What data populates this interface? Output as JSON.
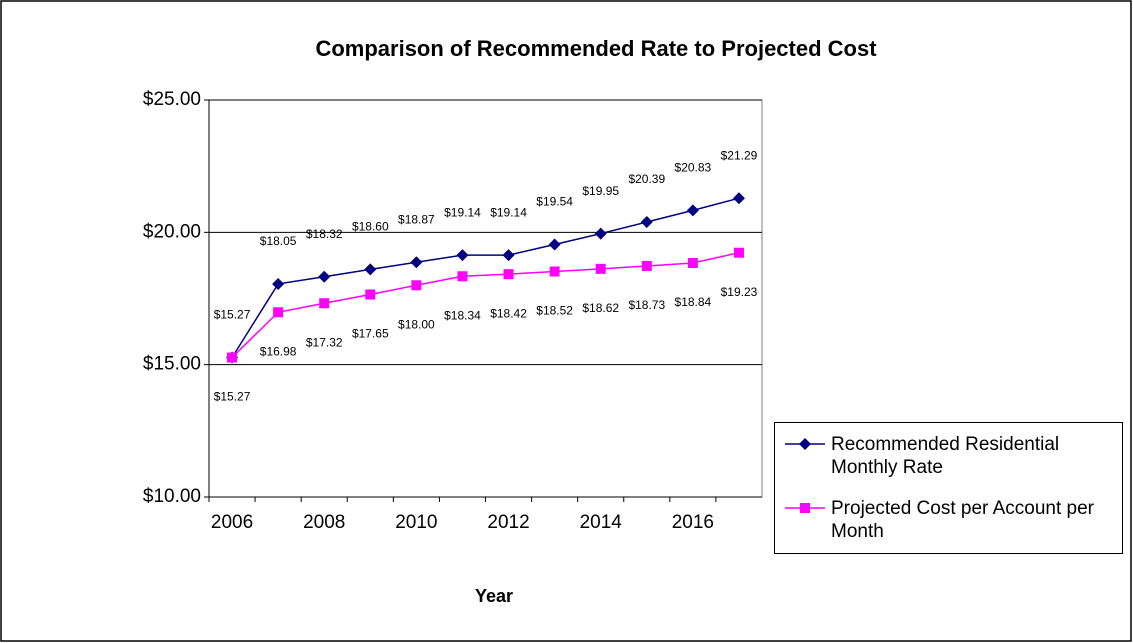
{
  "chart_data": {
    "type": "line",
    "title": "Comparison of Recommended Rate to Projected Cost",
    "x_label": "Year",
    "categories": [
      "2006",
      null,
      "2008",
      null,
      "2010",
      null,
      "2012",
      null,
      "2014",
      null,
      "2016",
      null
    ],
    "series": [
      {
        "name": "Recommended Residential Monthly Rate",
        "color": "#000080",
        "marker": "diamond",
        "values": [
          15.27,
          18.05,
          18.32,
          18.6,
          18.87,
          19.14,
          19.14,
          19.54,
          19.95,
          20.39,
          20.83,
          21.29
        ],
        "value_labels": [
          "$15.27",
          "$18.05",
          "$18.32",
          "$18.60",
          "$18.87",
          "$19.14",
          "$19.14",
          "$19.54",
          "$19.95",
          "$20.39",
          "$20.83",
          "$21.29"
        ]
      },
      {
        "name": "Projected Cost per Account per Month",
        "color": "#ff00ff",
        "marker": "square",
        "values": [
          15.27,
          16.98,
          17.32,
          17.65,
          18.0,
          18.34,
          18.42,
          18.52,
          18.62,
          18.73,
          18.84,
          19.23
        ],
        "value_labels": [
          "$15.27",
          "$16.98",
          "$17.32",
          "$17.65",
          "$18.00",
          "$18.34",
          "$18.42",
          "$18.52",
          "$18.62",
          "$18.73",
          "$18.84",
          "$19.23"
        ]
      }
    ],
    "ylim": [
      10,
      25
    ],
    "yticks": [
      {
        "value": 10,
        "label": "$10.00"
      },
      {
        "value": 15,
        "label": "$15.00"
      },
      {
        "value": 20,
        "label": "$20.00"
      },
      {
        "value": 25,
        "label": "$25.00"
      }
    ],
    "grid": true,
    "legend": "right"
  }
}
